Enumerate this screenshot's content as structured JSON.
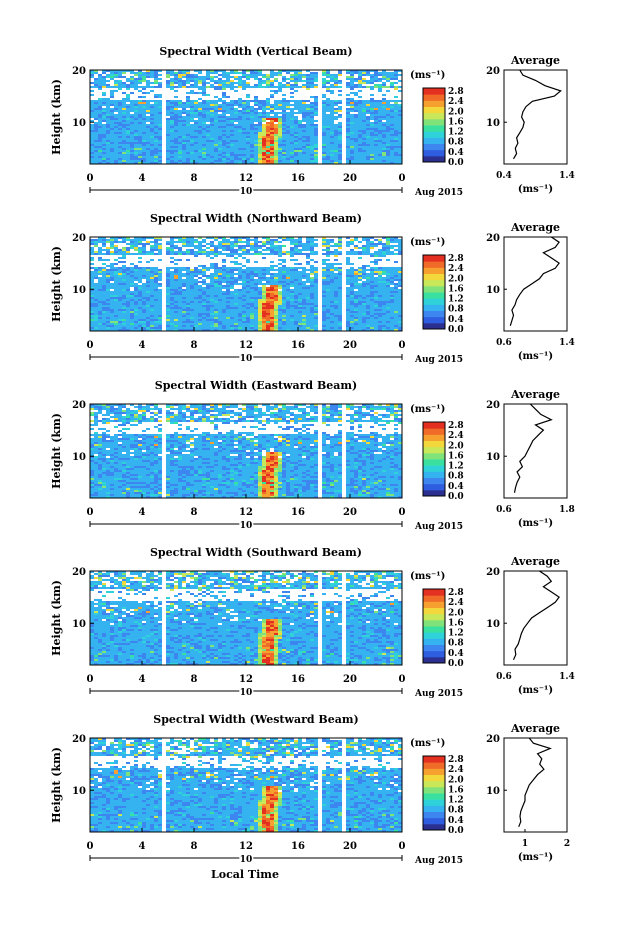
{
  "figure": {
    "xlabel": "Local Time",
    "date_label": "10",
    "month_label": "Aug 2015",
    "colorbar_unit": "(ms⁻¹)",
    "colorbar_ticks": [
      "2.8",
      "2.4",
      "2.0",
      "1.6",
      "1.2",
      "0.8",
      "0.4",
      "0.0"
    ],
    "avg_title": "Average",
    "avg_xlabel": "(ms⁻¹)",
    "colormap": [
      "#2b2f8f",
      "#2f5de0",
      "#3d86f0",
      "#35b2f0",
      "#2fd2d8",
      "#3ae0a0",
      "#7fe37a",
      "#c8e85a",
      "#f3d83c",
      "#f6a030",
      "#f06a28",
      "#e43020"
    ]
  },
  "chart_data": [
    {
      "type": "heatmap",
      "title": "Spectral Width (Vertical Beam)",
      "ylabel": "Height (km)",
      "x_ticks": [
        "0",
        "4",
        "8",
        "12",
        "16",
        "20",
        "0"
      ],
      "y_ticks": [
        "20",
        "10"
      ],
      "xlim": [
        0,
        24
      ],
      "ylim": [
        2,
        20
      ],
      "data_gaps_local_time": [
        [
          5.5,
          5.8
        ],
        [
          17.4,
          17.6
        ],
        [
          19.3,
          19.6
        ]
      ],
      "color_scale": [
        0.0,
        3.0
      ],
      "average_profile": {
        "xticks": [
          "0.4",
          "1.4"
        ],
        "xlim": [
          0.4,
          1.4
        ],
        "height_km": [
          3,
          4,
          5,
          6,
          7,
          8,
          9,
          10,
          11,
          12,
          13,
          14,
          15,
          16,
          17,
          18,
          19,
          20
        ],
        "width_ms": [
          0.55,
          0.6,
          0.58,
          0.62,
          0.6,
          0.65,
          0.7,
          0.72,
          0.68,
          0.7,
          0.75,
          0.85,
          1.2,
          1.3,
          1.05,
          0.9,
          0.7,
          0.65
        ]
      }
    },
    {
      "type": "heatmap",
      "title": "Spectral Width (Northward Beam)",
      "ylabel": "Height (km)",
      "x_ticks": [
        "0",
        "4",
        "8",
        "12",
        "16",
        "20",
        "0"
      ],
      "y_ticks": [
        "20",
        "10"
      ],
      "xlim": [
        0,
        24
      ],
      "ylim": [
        2,
        20
      ],
      "data_gaps_local_time": [
        [
          5.5,
          5.8
        ],
        [
          17.4,
          17.6
        ],
        [
          19.3,
          19.6
        ]
      ],
      "color_scale": [
        0.0,
        3.0
      ],
      "average_profile": {
        "xticks": [
          "0.6",
          "1.4"
        ],
        "xlim": [
          0.6,
          1.4
        ],
        "height_km": [
          3,
          4,
          5,
          6,
          7,
          8,
          9,
          10,
          11,
          12,
          13,
          14,
          15,
          16,
          17,
          18,
          19,
          20
        ],
        "width_ms": [
          0.68,
          0.7,
          0.72,
          0.7,
          0.74,
          0.76,
          0.8,
          0.85,
          0.95,
          1.05,
          1.1,
          1.25,
          1.3,
          1.2,
          1.1,
          1.25,
          1.3,
          1.2
        ]
      }
    },
    {
      "type": "heatmap",
      "title": "Spectral Width (Eastward Beam)",
      "ylabel": "Height (km)",
      "x_ticks": [
        "0",
        "4",
        "8",
        "12",
        "16",
        "20",
        "0"
      ],
      "y_ticks": [
        "20",
        "10"
      ],
      "xlim": [
        0,
        24
      ],
      "ylim": [
        2,
        20
      ],
      "data_gaps_local_time": [
        [
          5.5,
          5.8
        ],
        [
          17.4,
          17.6
        ],
        [
          19.3,
          19.6
        ]
      ],
      "color_scale": [
        0.0,
        3.0
      ],
      "average_profile": {
        "xticks": [
          "0.6",
          "1.8"
        ],
        "xlim": [
          0.6,
          1.8
        ],
        "height_km": [
          3,
          4,
          5,
          6,
          7,
          8,
          9,
          10,
          11,
          12,
          13,
          14,
          15,
          16,
          17,
          18,
          19,
          20
        ],
        "width_ms": [
          0.8,
          0.82,
          0.85,
          0.9,
          0.85,
          0.95,
          0.9,
          1.0,
          1.05,
          1.1,
          1.15,
          1.25,
          1.35,
          1.2,
          1.5,
          1.3,
          1.2,
          1.1
        ]
      }
    },
    {
      "type": "heatmap",
      "title": "Spectral Width (Southward Beam)",
      "ylabel": "Height (km)",
      "x_ticks": [
        "0",
        "4",
        "8",
        "12",
        "16",
        "20",
        "0"
      ],
      "y_ticks": [
        "20",
        "10"
      ],
      "xlim": [
        0,
        24
      ],
      "ylim": [
        2,
        20
      ],
      "data_gaps_local_time": [
        [
          5.5,
          5.8
        ],
        [
          17.4,
          17.6
        ],
        [
          19.3,
          19.6
        ]
      ],
      "color_scale": [
        0.0,
        3.0
      ],
      "average_profile": {
        "xticks": [
          "0.6",
          "1.4"
        ],
        "xlim": [
          0.6,
          1.4
        ],
        "height_km": [
          3,
          4,
          5,
          6,
          7,
          8,
          9,
          10,
          11,
          12,
          13,
          14,
          15,
          16,
          17,
          18,
          19,
          20
        ],
        "width_ms": [
          0.72,
          0.75,
          0.74,
          0.78,
          0.8,
          0.82,
          0.85,
          0.9,
          0.95,
          1.05,
          1.15,
          1.25,
          1.3,
          1.2,
          1.1,
          1.2,
          1.15,
          1.05
        ]
      }
    },
    {
      "type": "heatmap",
      "title": "Spectral Width (Westward Beam)",
      "ylabel": "Height (km)",
      "x_ticks": [
        "0",
        "4",
        "8",
        "12",
        "16",
        "20",
        "0"
      ],
      "y_ticks": [
        "20",
        "10"
      ],
      "xlim": [
        0,
        24
      ],
      "ylim": [
        2,
        20
      ],
      "data_gaps_local_time": [
        [
          5.5,
          5.8
        ],
        [
          17.4,
          17.6
        ],
        [
          19.3,
          19.6
        ]
      ],
      "color_scale": [
        0.0,
        3.0
      ],
      "average_profile": {
        "xticks": [
          "1",
          "2"
        ],
        "xlim": [
          0.5,
          2.0
        ],
        "height_km": [
          3,
          4,
          5,
          6,
          7,
          8,
          9,
          10,
          11,
          12,
          13,
          14,
          15,
          16,
          17,
          18,
          19,
          20
        ],
        "width_ms": [
          0.85,
          0.9,
          0.88,
          0.9,
          0.95,
          1.0,
          1.0,
          1.05,
          1.1,
          1.2,
          1.3,
          1.45,
          1.35,
          1.4,
          1.3,
          1.6,
          1.2,
          1.1
        ]
      }
    }
  ]
}
